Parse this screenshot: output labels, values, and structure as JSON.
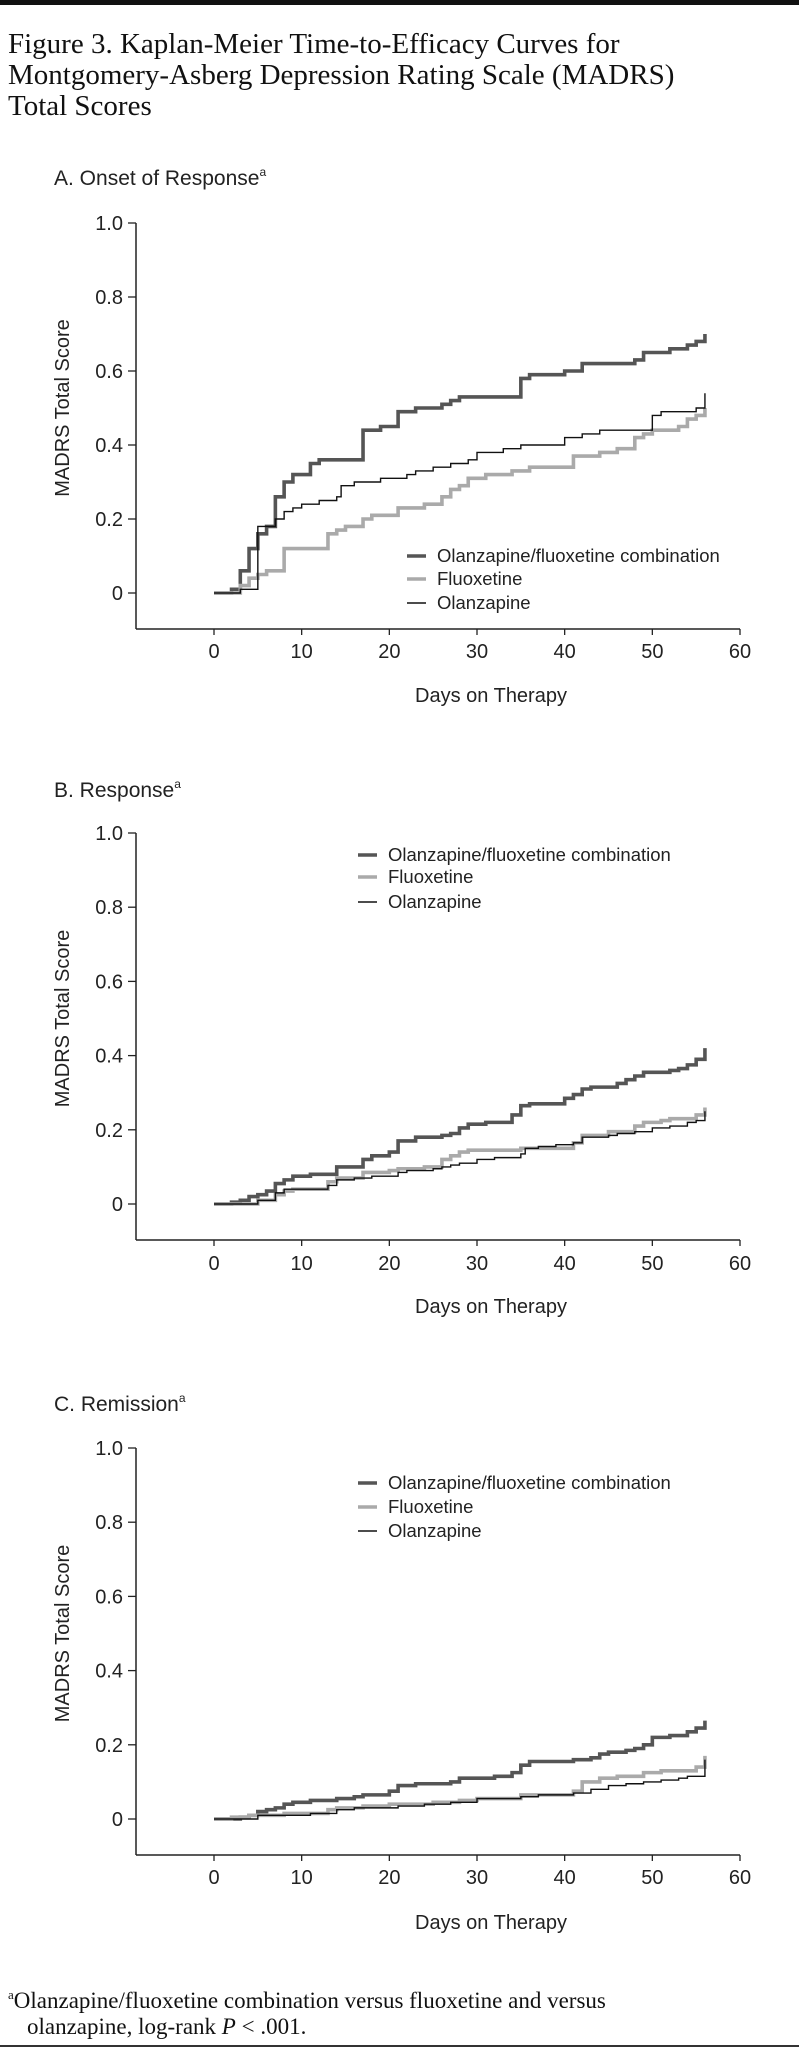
{
  "figure": {
    "title_lines": [
      "Figure 3. Kaplan-Meier Time-to-Efficacy Curves for",
      "Montgomery-Asberg Depression Rating Scale (MADRS)",
      "Total Scores"
    ],
    "footnote_marker": "a",
    "footnote_lines": [
      "Olanzapine/fluoxetine combination versus fluoxetine and versus",
      "olanzapine, log-rank ",
      "P",
      " < .001."
    ]
  },
  "colors": {
    "ofc": "#555555",
    "fluoxetine": "#aaaaaa",
    "olanzapine": "#111111"
  },
  "chart_data": [
    {
      "type": "line",
      "title": "A. Onset of Response",
      "title_sup": "a",
      "xlabel": "Days on Therapy",
      "ylabel": "MADRS Total Score",
      "xlim": [
        0,
        60
      ],
      "ylim": [
        0,
        1.0
      ],
      "xticks": [
        "0",
        "10",
        "20",
        "30",
        "40",
        "50",
        "60"
      ],
      "yticks": [
        "0",
        "0.2",
        "0.4",
        "0.6",
        "0.8",
        "1.0"
      ],
      "legend_position": "bottom-right",
      "series": [
        {
          "name": "Olanzapine/fluoxetine combination",
          "key": "ofc",
          "points": [
            [
              0,
              0
            ],
            [
              2,
              0.01
            ],
            [
              3,
              0.06
            ],
            [
              4,
              0.12
            ],
            [
              5,
              0.16
            ],
            [
              6,
              0.18
            ],
            [
              7,
              0.26
            ],
            [
              8,
              0.3
            ],
            [
              9,
              0.32
            ],
            [
              11,
              0.35
            ],
            [
              12,
              0.36
            ],
            [
              17,
              0.44
            ],
            [
              19,
              0.45
            ],
            [
              21,
              0.49
            ],
            [
              23,
              0.5
            ],
            [
              26,
              0.51
            ],
            [
              27,
              0.52
            ],
            [
              28,
              0.53
            ],
            [
              35,
              0.58
            ],
            [
              36,
              0.59
            ],
            [
              40,
              0.6
            ],
            [
              42,
              0.62
            ],
            [
              48,
              0.63
            ],
            [
              49,
              0.65
            ],
            [
              52,
              0.66
            ],
            [
              54,
              0.67
            ],
            [
              55,
              0.68
            ],
            [
              56,
              0.7
            ]
          ]
        },
        {
          "name": "Fluoxetine",
          "key": "fluoxetine",
          "points": [
            [
              0,
              0
            ],
            [
              3,
              0.02
            ],
            [
              4,
              0.04
            ],
            [
              5,
              0.05
            ],
            [
              6,
              0.06
            ],
            [
              8,
              0.12
            ],
            [
              13,
              0.16
            ],
            [
              14,
              0.17
            ],
            [
              15,
              0.18
            ],
            [
              17,
              0.2
            ],
            [
              18,
              0.21
            ],
            [
              21,
              0.23
            ],
            [
              24,
              0.24
            ],
            [
              26,
              0.26
            ],
            [
              27,
              0.28
            ],
            [
              28,
              0.29
            ],
            [
              29,
              0.31
            ],
            [
              31,
              0.32
            ],
            [
              34,
              0.33
            ],
            [
              36,
              0.34
            ],
            [
              41,
              0.37
            ],
            [
              44,
              0.38
            ],
            [
              46,
              0.39
            ],
            [
              48,
              0.42
            ],
            [
              49,
              0.43
            ],
            [
              50,
              0.44
            ],
            [
              53,
              0.45
            ],
            [
              54,
              0.47
            ],
            [
              55,
              0.48
            ],
            [
              56,
              0.5
            ]
          ]
        },
        {
          "name": "Olanzapine",
          "key": "olanzapine",
          "points": [
            [
              0,
              0
            ],
            [
              3,
              0.01
            ],
            [
              5,
              0.18
            ],
            [
              7,
              0.2
            ],
            [
              8,
              0.22
            ],
            [
              9,
              0.23
            ],
            [
              10,
              0.24
            ],
            [
              12,
              0.25
            ],
            [
              14,
              0.26
            ],
            [
              14.5,
              0.29
            ],
            [
              16,
              0.3
            ],
            [
              19,
              0.31
            ],
            [
              22,
              0.32
            ],
            [
              23,
              0.33
            ],
            [
              25,
              0.34
            ],
            [
              27,
              0.35
            ],
            [
              29,
              0.36
            ],
            [
              30,
              0.38
            ],
            [
              33,
              0.39
            ],
            [
              35,
              0.4
            ],
            [
              40,
              0.42
            ],
            [
              42,
              0.43
            ],
            [
              44,
              0.44
            ],
            [
              50,
              0.48
            ],
            [
              51,
              0.49
            ],
            [
              55,
              0.5
            ],
            [
              56,
              0.54
            ]
          ]
        }
      ]
    },
    {
      "type": "line",
      "title": "B. Response",
      "title_sup": "a",
      "xlabel": "Days on Therapy",
      "ylabel": "MADRS Total Score",
      "xlim": [
        0,
        60
      ],
      "ylim": [
        0,
        1.0
      ],
      "xticks": [
        "0",
        "10",
        "20",
        "30",
        "40",
        "50",
        "60"
      ],
      "yticks": [
        "0",
        "0.2",
        "0.4",
        "0.6",
        "0.8",
        "1.0"
      ],
      "legend_position": "top-right",
      "series": [
        {
          "name": "Olanzapine/fluoxetine combination",
          "key": "ofc",
          "points": [
            [
              0,
              0
            ],
            [
              2,
              0.005
            ],
            [
              3,
              0.01
            ],
            [
              4,
              0.02
            ],
            [
              5,
              0.025
            ],
            [
              6,
              0.035
            ],
            [
              7,
              0.055
            ],
            [
              8,
              0.065
            ],
            [
              9,
              0.075
            ],
            [
              11,
              0.08
            ],
            [
              14,
              0.1
            ],
            [
              17,
              0.12
            ],
            [
              18,
              0.13
            ],
            [
              20,
              0.14
            ],
            [
              21,
              0.17
            ],
            [
              23,
              0.18
            ],
            [
              26,
              0.185
            ],
            [
              27,
              0.19
            ],
            [
              28,
              0.205
            ],
            [
              29,
              0.215
            ],
            [
              31,
              0.22
            ],
            [
              34,
              0.24
            ],
            [
              35,
              0.265
            ],
            [
              36,
              0.27
            ],
            [
              40,
              0.285
            ],
            [
              41,
              0.295
            ],
            [
              42,
              0.31
            ],
            [
              43,
              0.315
            ],
            [
              46,
              0.325
            ],
            [
              47,
              0.335
            ],
            [
              48,
              0.345
            ],
            [
              49,
              0.355
            ],
            [
              52,
              0.36
            ],
            [
              53,
              0.365
            ],
            [
              54,
              0.375
            ],
            [
              55,
              0.39
            ],
            [
              56,
              0.42
            ]
          ]
        },
        {
          "name": "Fluoxetine",
          "key": "fluoxetine",
          "points": [
            [
              0,
              0
            ],
            [
              5,
              0.01
            ],
            [
              7,
              0.025
            ],
            [
              8,
              0.035
            ],
            [
              9,
              0.04
            ],
            [
              13,
              0.06
            ],
            [
              14,
              0.07
            ],
            [
              17,
              0.085
            ],
            [
              20,
              0.09
            ],
            [
              21,
              0.095
            ],
            [
              24,
              0.1
            ],
            [
              26,
              0.12
            ],
            [
              27,
              0.13
            ],
            [
              28,
              0.14
            ],
            [
              29,
              0.145
            ],
            [
              35,
              0.15
            ],
            [
              41,
              0.165
            ],
            [
              42,
              0.185
            ],
            [
              45,
              0.195
            ],
            [
              48,
              0.21
            ],
            [
              49,
              0.22
            ],
            [
              51,
              0.225
            ],
            [
              52,
              0.23
            ],
            [
              55,
              0.24
            ],
            [
              56,
              0.26
            ]
          ]
        },
        {
          "name": "Olanzapine",
          "key": "olanzapine",
          "points": [
            [
              0,
              0
            ],
            [
              5,
              0.01
            ],
            [
              7,
              0.03
            ],
            [
              8,
              0.04
            ],
            [
              13,
              0.05
            ],
            [
              14,
              0.065
            ],
            [
              16,
              0.07
            ],
            [
              18,
              0.075
            ],
            [
              21,
              0.085
            ],
            [
              22,
              0.09
            ],
            [
              25,
              0.095
            ],
            [
              26,
              0.1
            ],
            [
              27,
              0.105
            ],
            [
              28,
              0.11
            ],
            [
              30,
              0.12
            ],
            [
              32,
              0.125
            ],
            [
              35,
              0.135
            ],
            [
              35.5,
              0.15
            ],
            [
              37,
              0.155
            ],
            [
              39,
              0.16
            ],
            [
              41,
              0.165
            ],
            [
              42,
              0.18
            ],
            [
              45,
              0.185
            ],
            [
              46,
              0.19
            ],
            [
              48,
              0.195
            ],
            [
              50,
              0.205
            ],
            [
              52,
              0.21
            ],
            [
              54,
              0.22
            ],
            [
              55,
              0.225
            ],
            [
              56,
              0.25
            ]
          ]
        }
      ]
    },
    {
      "type": "line",
      "title": "C. Remission",
      "title_sup": "a",
      "xlabel": "Days on Therapy",
      "ylabel": "MADRS Total Score",
      "xlim": [
        0,
        60
      ],
      "ylim": [
        0,
        1.0
      ],
      "xticks": [
        "0",
        "10",
        "20",
        "30",
        "40",
        "50",
        "60"
      ],
      "yticks": [
        "0",
        "0.2",
        "0.4",
        "0.6",
        "0.8",
        "1.0"
      ],
      "legend_position": "top-right",
      "series": [
        {
          "name": "Olanzapine/fluoxetine combination",
          "key": "ofc",
          "points": [
            [
              0,
              0
            ],
            [
              3,
              0.005
            ],
            [
              4,
              0.01
            ],
            [
              5,
              0.02
            ],
            [
              6,
              0.025
            ],
            [
              7,
              0.03
            ],
            [
              8,
              0.04
            ],
            [
              9,
              0.045
            ],
            [
              11,
              0.05
            ],
            [
              14,
              0.055
            ],
            [
              16,
              0.06
            ],
            [
              17,
              0.065
            ],
            [
              20,
              0.075
            ],
            [
              21,
              0.09
            ],
            [
              23,
              0.095
            ],
            [
              27,
              0.1
            ],
            [
              28,
              0.11
            ],
            [
              32,
              0.115
            ],
            [
              34,
              0.125
            ],
            [
              35,
              0.145
            ],
            [
              36,
              0.155
            ],
            [
              41,
              0.16
            ],
            [
              43,
              0.165
            ],
            [
              44,
              0.175
            ],
            [
              45,
              0.18
            ],
            [
              47,
              0.185
            ],
            [
              48,
              0.19
            ],
            [
              49,
              0.2
            ],
            [
              50,
              0.22
            ],
            [
              52,
              0.225
            ],
            [
              54,
              0.235
            ],
            [
              55,
              0.245
            ],
            [
              56,
              0.265
            ]
          ]
        },
        {
          "name": "Fluoxetine",
          "key": "fluoxetine",
          "points": [
            [
              0,
              0
            ],
            [
              2,
              0.005
            ],
            [
              4,
              0.01
            ],
            [
              8,
              0.015
            ],
            [
              13,
              0.025
            ],
            [
              14,
              0.03
            ],
            [
              17,
              0.035
            ],
            [
              20,
              0.04
            ],
            [
              25,
              0.045
            ],
            [
              28,
              0.05
            ],
            [
              30,
              0.055
            ],
            [
              35,
              0.065
            ],
            [
              41,
              0.075
            ],
            [
              42,
              0.1
            ],
            [
              44,
              0.11
            ],
            [
              46,
              0.115
            ],
            [
              49,
              0.125
            ],
            [
              51,
              0.13
            ],
            [
              55,
              0.14
            ],
            [
              56,
              0.17
            ]
          ]
        },
        {
          "name": "Olanzapine",
          "key": "olanzapine",
          "points": [
            [
              0,
              0
            ],
            [
              5,
              0.01
            ],
            [
              11,
              0.015
            ],
            [
              14,
              0.025
            ],
            [
              16,
              0.03
            ],
            [
              21,
              0.035
            ],
            [
              24,
              0.04
            ],
            [
              27,
              0.045
            ],
            [
              30,
              0.055
            ],
            [
              35,
              0.06
            ],
            [
              37,
              0.065
            ],
            [
              41,
              0.07
            ],
            [
              43,
              0.08
            ],
            [
              45,
              0.09
            ],
            [
              47,
              0.095
            ],
            [
              49,
              0.1
            ],
            [
              51,
              0.105
            ],
            [
              53,
              0.11
            ],
            [
              54,
              0.115
            ],
            [
              56,
              0.16
            ]
          ]
        }
      ]
    }
  ]
}
